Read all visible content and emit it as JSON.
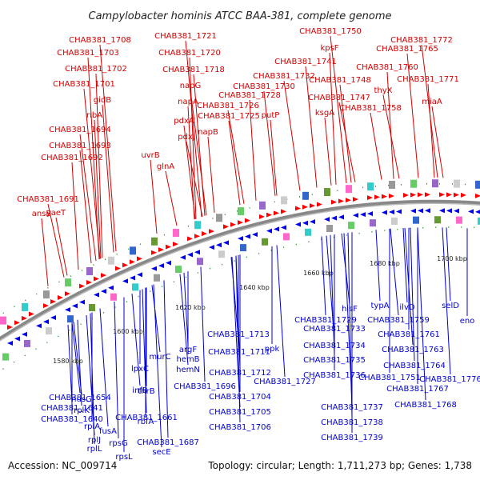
{
  "title": "Campylobacter hominis ATCC BAA-381, complete genome",
  "footer": {
    "accession": "Accession: NC_009714",
    "summary": "Topology: circular; Length: 1,711,273 bp; Genes: 1,738"
  },
  "scale_labels": [
    "1580 kbp",
    "1600 kbp",
    "1620 kbp",
    "1640 kbp",
    "1660 kbp",
    "1680 kbp",
    "1700 kbp"
  ],
  "colors": {
    "forward_strand": "#ff0000",
    "reverse_strand": "#0000ee",
    "forward_label": "#d00000",
    "reverse_label": "#0000d0",
    "backbone": "#888888"
  },
  "forward_labels": [
    "ansB",
    "yaeT",
    "CHAB381_1691",
    "CHAB381_1692",
    "CHAB381_1693",
    "CHAB381_1694",
    "ribA",
    "gidB",
    "CHAB381_1701",
    "CHAB381_1702",
    "CHAB381_1703",
    "CHAB381_1708",
    "uvrB",
    "glnA",
    "CHAB381_1721",
    "CHAB381_1720",
    "CHAB381_1718",
    "napG",
    "napA",
    "pdxA",
    "pdxJ",
    "napB",
    "CHAB381_1725",
    "CHAB381_1726",
    "CHAB381_1728",
    "CHAB381_1730",
    "CHAB381_1732",
    "putP",
    "CHAB381_1741",
    "CHAB381_1750",
    "kpsF",
    "CHAB381_1748",
    "CHAB381_1747",
    "ksgA",
    "CHAB381_1758",
    "thyX",
    "CHAB381_1760",
    "CHAB381_1765",
    "CHAB381_1772",
    "CHAB381_1771",
    "miaA"
  ],
  "reverse_labels": [
    "CHAB381_1654",
    "CHAB381_1641",
    "CHAB381_1640",
    "fusA",
    "rpsG",
    "rpsL",
    "nusG",
    "rplK",
    "rplA",
    "rplJ",
    "rplL",
    "lpxC",
    "infB",
    "CHAB381_1661",
    "rbfA",
    "secE",
    "CHAB381_1687",
    "thrB",
    "murC",
    "argF",
    "hemB",
    "hemN",
    "CHAB381_1696",
    "CHAB381_1704",
    "CHAB381_1705",
    "CHAB381_1706",
    "CHAB381_1713",
    "CHAB381_1711",
    "CHAB381_1712",
    "ppk",
    "CHAB381_1727",
    "CHAB381_1729",
    "CHAB381_1733",
    "CHAB381_1734",
    "CHAB381_1735",
    "CHAB381_1736",
    "CHAB381_1737",
    "CHAB381_1738",
    "CHAB381_1739",
    "hisF",
    "typA",
    "CHAB381_1751",
    "CHAB381_1759",
    "ilvD",
    "CHAB381_1761",
    "CHAB381_1763",
    "CHAB381_1764",
    "CHAB381_1767",
    "CHAB381_1768",
    "selD",
    "eno",
    "CHAB381_1776"
  ]
}
